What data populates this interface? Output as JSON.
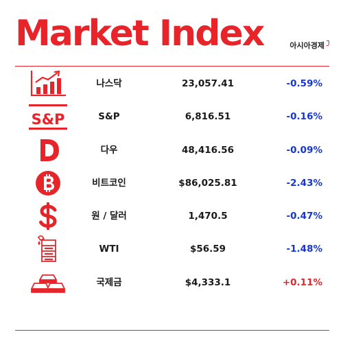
{
  "header": {
    "title": "Market Index",
    "brand": "아시아경제"
  },
  "colors": {
    "accent": "#e8242b",
    "down": "#1536d6",
    "up": "#e8242b"
  },
  "rows": [
    {
      "icon": "bar-chart-up-icon",
      "name": "나스닥",
      "value": "23,057.41",
      "change": "-0.59%",
      "direction": "down"
    },
    {
      "icon": "sp-logo-icon",
      "name": "S&P",
      "value": "6,816.51",
      "change": "-0.16%",
      "direction": "down"
    },
    {
      "icon": "dow-d-icon",
      "name": "다우",
      "value": "48,416.56",
      "change": "-0.09%",
      "direction": "down"
    },
    {
      "icon": "bitcoin-icon",
      "name": "비트코인",
      "value": "$86,025.81",
      "change": "-2.43%",
      "direction": "down"
    },
    {
      "icon": "dollar-icon",
      "name": "원 / 달러",
      "value": "1,470.5",
      "change": "-0.47%",
      "direction": "down"
    },
    {
      "icon": "oil-barrel-icon",
      "name": "WTI",
      "value": "$56.59",
      "change": "-1.48%",
      "direction": "down"
    },
    {
      "icon": "gold-bars-icon",
      "name": "국제금",
      "value": "$4,333.1",
      "change": "+0.11%",
      "direction": "up"
    }
  ],
  "sp_logo_text": "S&P"
}
